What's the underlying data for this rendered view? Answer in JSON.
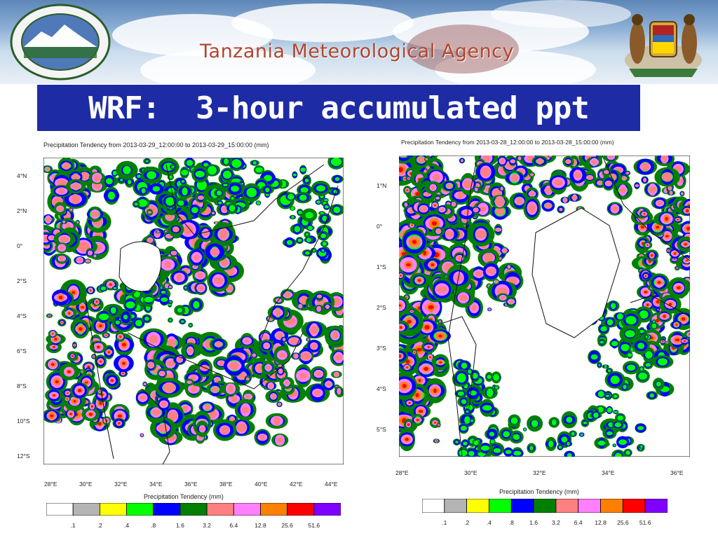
{
  "header": {
    "agency_name": "Tanzania Meteorological Agency",
    "logo_left": "tma-seal-logo",
    "logo_right": "tanzania-coat-of-arms"
  },
  "slide": {
    "title": "WRF:  3-hour accumulated ppt"
  },
  "left_map": {
    "title": "Precipitation Tendency from 2013-03-29_12:00:00 to 2013-03-29_15:00:00   (mm)",
    "lat_ticks": [
      "4°N",
      "2°N",
      "0°",
      "2°S",
      "4°S",
      "6°S",
      "8°S",
      "10°S",
      "12°S"
    ],
    "lon_ticks": [
      "28°E",
      "30°E",
      "32°E",
      "34°E",
      "36°E",
      "38°E",
      "40°E",
      "42°E",
      "44°E"
    ],
    "colorbar_label": "Precipitation Tendency  (mm)"
  },
  "right_map": {
    "title": "Precipitation Tendency from 2013-03-28_12:00:00 to 2013-03-28_15:00:00   (mm)",
    "lat_ticks": [
      "1°N",
      "0°",
      "1°S",
      "2°S",
      "3°S",
      "4°S",
      "5°S"
    ],
    "lon_ticks": [
      "28°E",
      "30°E",
      "32°E",
      "34°E",
      "36°E"
    ],
    "colorbar_label": "Precipitation Tendency  (mm)"
  },
  "colorbar": {
    "levels": [
      ".1",
      ".2",
      ".4",
      ".8",
      "1.6",
      "3.2",
      "6.4",
      "12.8",
      "25.6",
      "51.6"
    ],
    "colors": [
      "#ffffff",
      "#b4b4b4",
      "#ffff00",
      "#00ff00",
      "#0000ff",
      "#008000",
      "#ff8080",
      "#ff80ff",
      "#ff8000",
      "#ff0000",
      "#8000ff"
    ]
  }
}
